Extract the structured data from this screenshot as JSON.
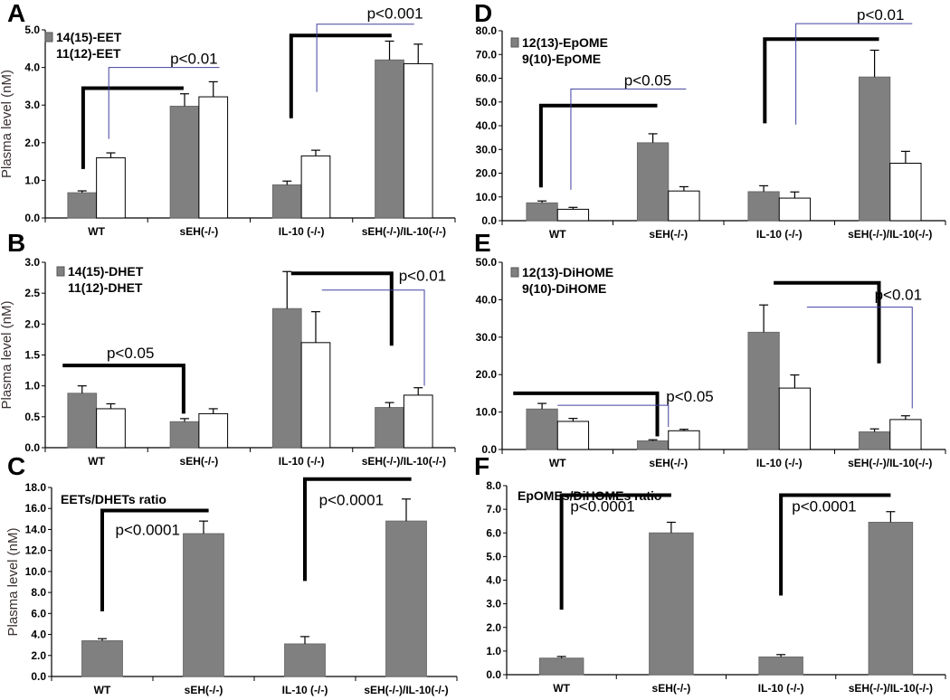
{
  "chart_data": [
    {
      "panel": "A",
      "type": "bar",
      "ylabel": "Plasma level (nM)",
      "categories": [
        "WT",
        "sEH(-/-)",
        "IL-10 (-/-)",
        "sEH(-/-)/IL-10(-/-)"
      ],
      "ylim": [
        0,
        5
      ],
      "ticks": [
        "0.0",
        "1.0",
        "2.0",
        "3.0",
        "4.0",
        "5.0"
      ],
      "tick_values": [
        0,
        1,
        2,
        3,
        4,
        5
      ],
      "series": [
        {
          "name": "14(15)-EET",
          "color": "#808080",
          "values": [
            0.67,
            2.97,
            0.88,
            4.2
          ],
          "errors": [
            0.05,
            0.33,
            0.1,
            0.5
          ]
        },
        {
          "name": "11(12)-EET",
          "color": "#ffffff",
          "values": [
            1.6,
            3.22,
            1.65,
            4.1
          ],
          "errors": [
            0.13,
            0.4,
            0.15,
            0.52
          ]
        }
      ],
      "brackets": [
        {
          "color": "#000000",
          "points": [
            [
              -0.13,
              1.3
            ],
            [
              -0.13,
              3.45
            ],
            [
              0.85,
              3.45
            ]
          ]
        },
        {
          "color": "#4040a0",
          "points": [
            [
              0.12,
              2.1
            ],
            [
              0.12,
              4.0
            ],
            [
              1.2,
              4.0
            ]
          ]
        },
        {
          "color": "#000000",
          "points": [
            [
              1.9,
              2.65
            ],
            [
              1.9,
              4.85
            ],
            [
              2.88,
              4.85
            ]
          ]
        },
        {
          "color": "#4040a0",
          "points": [
            [
              2.15,
              3.35
            ],
            [
              2.15,
              5.15
            ],
            [
              3.1,
              5.15
            ]
          ]
        }
      ],
      "annotations": [
        {
          "text": "p<0.01",
          "x": 0.72,
          "y": 4.1
        },
        {
          "text": "p<0.001",
          "x": 2.64,
          "y": 5.3
        }
      ]
    },
    {
      "panel": "B",
      "type": "bar",
      "ylabel": "Plasma level (nM)",
      "categories": [
        "WT",
        "sEH(-/-)",
        "IL-10 (-/-)",
        "sEH(-/-)/IL-10(-/-)"
      ],
      "ylim": [
        0,
        3
      ],
      "ticks": [
        "0.0",
        "0.5",
        "1.0",
        "1.5",
        "2.0",
        "2.5",
        "3.0"
      ],
      "tick_values": [
        0,
        0.5,
        1,
        1.5,
        2,
        2.5,
        3
      ],
      "series": [
        {
          "name": "14(15)-DHET",
          "color": "#808080",
          "values": [
            0.88,
            0.42,
            2.25,
            0.65
          ],
          "errors": [
            0.12,
            0.05,
            0.6,
            0.08
          ]
        },
        {
          "name": "11(12)-DHET",
          "color": "#ffffff",
          "values": [
            0.63,
            0.55,
            1.7,
            0.85
          ],
          "errors": [
            0.08,
            0.08,
            0.5,
            0.12
          ]
        }
      ],
      "brackets": [
        {
          "color": "#000000",
          "points": [
            [
              -0.33,
              1.33
            ],
            [
              0.85,
              1.33
            ],
            [
              0.85,
              0.55
            ]
          ]
        },
        {
          "color": "#000000",
          "points": [
            [
              1.9,
              2.82
            ],
            [
              2.88,
              2.82
            ],
            [
              2.88,
              1.65
            ]
          ]
        },
        {
          "color": "#4040a0",
          "points": [
            [
              2.2,
              2.55
            ],
            [
              3.2,
              2.55
            ],
            [
              3.2,
              1.0
            ]
          ]
        }
      ],
      "annotations": [
        {
          "text": "p<0.05",
          "x": 0.1,
          "y": 1.45
        },
        {
          "text": "p<0.01",
          "x": 2.95,
          "y": 2.7
        }
      ]
    },
    {
      "panel": "C",
      "type": "bar",
      "ylabel": "Plasma level (nM)",
      "categories": [
        "WT",
        "sEH(-/-)",
        "IL-10 (-/-)",
        "sEH(-/-)/IL-10(-/-)"
      ],
      "ylim": [
        0,
        18
      ],
      "ticks": [
        "0.0",
        "2.0",
        "4.0",
        "6.0",
        "8.0",
        "10.0",
        "12.0",
        "14.0",
        "16.0",
        "18.0"
      ],
      "tick_values": [
        0,
        2,
        4,
        6,
        8,
        10,
        12,
        14,
        16,
        18
      ],
      "series": [
        {
          "name": "EETs/DHETs ratio",
          "color": "#808080",
          "values": [
            3.4,
            13.6,
            3.1,
            14.8
          ],
          "errors": [
            0.2,
            1.2,
            0.7,
            2.1
          ]
        }
      ],
      "brackets": [
        {
          "color": "#000000",
          "points": [
            [
              0,
              6.2
            ],
            [
              0,
              15.8
            ],
            [
              1.05,
              15.8
            ]
          ]
        },
        {
          "color": "#000000",
          "points": [
            [
              2,
              9.1
            ],
            [
              2,
              18.8
            ],
            [
              3.05,
              18.8
            ]
          ]
        }
      ],
      "annotations": [
        {
          "text": "p<0.0001",
          "x": 0.13,
          "y": 13.5
        },
        {
          "text": "p<0.0001",
          "x": 2.14,
          "y": 16.3
        }
      ]
    },
    {
      "panel": "D",
      "type": "bar",
      "ylabel": "",
      "categories": [
        "WT",
        "sEH(-/-)",
        "IL-10 (-/-)",
        "sEH(-/-)/IL-10(-/-)"
      ],
      "ylim": [
        0,
        80
      ],
      "ticks": [
        "0.0",
        "10.0",
        "20.0",
        "30.0",
        "40.0",
        "50.0",
        "60.0",
        "70.0",
        "80.0"
      ],
      "tick_values": [
        0,
        10,
        20,
        30,
        40,
        50,
        60,
        70,
        80
      ],
      "series": [
        {
          "name": "12(13)-EpOME",
          "color": "#808080",
          "values": [
            7.5,
            32.8,
            12.2,
            60.5
          ],
          "errors": [
            0.8,
            3.8,
            2.5,
            11.3
          ]
        },
        {
          "name": "9(10)-EpOME",
          "color": "#ffffff",
          "values": [
            4.8,
            12.5,
            9.5,
            24.2
          ],
          "errors": [
            0.8,
            1.8,
            2.6,
            5.0
          ]
        }
      ],
      "brackets": [
        {
          "color": "#000000",
          "points": [
            [
              -0.15,
              14
            ],
            [
              -0.15,
              48.5
            ],
            [
              0.9,
              48.5
            ]
          ]
        },
        {
          "color": "#4040a0",
          "points": [
            [
              0.12,
              13
            ],
            [
              0.12,
              55.5
            ],
            [
              1.16,
              55.5
            ]
          ]
        },
        {
          "color": "#000000",
          "points": [
            [
              1.87,
              41
            ],
            [
              1.87,
              76.5
            ],
            [
              2.9,
              76.5
            ]
          ]
        },
        {
          "color": "#4040a0",
          "points": [
            [
              2.15,
              40.5
            ],
            [
              2.15,
              83
            ],
            [
              3.2,
              83
            ]
          ]
        }
      ],
      "annotations": [
        {
          "text": "p<0.05",
          "x": 0.6,
          "y": 57
        },
        {
          "text": "p<0.01",
          "x": 2.7,
          "y": 84.5
        }
      ]
    },
    {
      "panel": "E",
      "type": "bar",
      "ylabel": "",
      "categories": [
        "WT",
        "sEH(-/-)",
        "IL-10 (-/-)",
        "sEH(-/-)/IL-10(-/-)"
      ],
      "ylim": [
        0,
        50
      ],
      "ticks": [
        "0.0",
        "10.0",
        "20.0",
        "30.0",
        "40.0",
        "50.0"
      ],
      "tick_values": [
        0,
        10,
        20,
        30,
        40,
        50
      ],
      "series": [
        {
          "name": "12(13)-DiHOME",
          "color": "#808080",
          "values": [
            10.8,
            2.3,
            31.3,
            4.7
          ],
          "errors": [
            1.5,
            0.3,
            7.3,
            0.8
          ]
        },
        {
          "name": "9(10)-DiHOME",
          "color": "#ffffff",
          "values": [
            7.5,
            5.0,
            16.4,
            8.0
          ],
          "errors": [
            0.8,
            0.4,
            3.5,
            1.0
          ]
        }
      ],
      "brackets": [
        {
          "color": "#000000",
          "points": [
            [
              -0.4,
              15
            ],
            [
              0.9,
              15
            ],
            [
              0.9,
              3.5
            ]
          ]
        },
        {
          "color": "#4040a0",
          "points": [
            [
              0.0,
              11.8
            ],
            [
              1.0,
              11.8
            ],
            [
              1.0,
              6
            ]
          ]
        },
        {
          "color": "#000000",
          "points": [
            [
              1.95,
              44.5
            ],
            [
              2.9,
              44.5
            ],
            [
              2.9,
              23
            ]
          ]
        },
        {
          "color": "#4040a0",
          "points": [
            [
              2.25,
              38
            ],
            [
              3.2,
              38
            ],
            [
              3.2,
              11
            ]
          ]
        }
      ],
      "annotations": [
        {
          "text": "p<0.05",
          "x": 0.98,
          "y": 12.8
        },
        {
          "text": "p<0.01",
          "x": 2.86,
          "y": 40
        }
      ]
    },
    {
      "panel": "F",
      "type": "bar",
      "ylabel": "",
      "categories": [
        "WT",
        "sEH(-/-)",
        "IL-10 (-/-)",
        "sEH(-/-)/IL-10(-/-)"
      ],
      "ylim": [
        0,
        8
      ],
      "ticks": [
        "0.0",
        "1.0",
        "2.0",
        "3.0",
        "4.0",
        "5.0",
        "6.0",
        "7.0",
        "8.0"
      ],
      "tick_values": [
        0,
        1,
        2,
        3,
        4,
        5,
        6,
        7,
        8
      ],
      "series": [
        {
          "name": "EpOMEs/DiHOMEs ratio",
          "color": "#808080",
          "values": [
            0.7,
            6.0,
            0.75,
            6.45
          ],
          "errors": [
            0.07,
            0.45,
            0.1,
            0.45
          ]
        }
      ],
      "brackets": [
        {
          "color": "#000000",
          "points": [
            [
              0,
              2.75
            ],
            [
              0,
              7.6
            ],
            [
              1.0,
              7.6
            ]
          ]
        },
        {
          "color": "#000000",
          "points": [
            [
              2,
              3.35
            ],
            [
              2,
              7.6
            ],
            [
              3.0,
              7.6
            ]
          ]
        }
      ],
      "annotations": [
        {
          "text": "p<0.0001",
          "x": 0.08,
          "y": 6.9
        },
        {
          "text": "p<0.0001",
          "x": 2.1,
          "y": 6.9
        }
      ]
    }
  ]
}
